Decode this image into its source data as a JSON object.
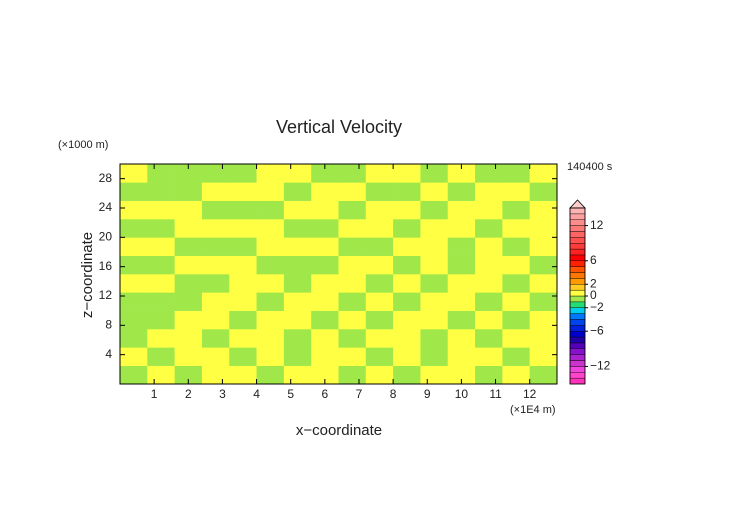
{
  "chart_data": {
    "type": "contour",
    "title": "Vertical Velocity",
    "xlabel": "x−coordinate",
    "ylabel": "z−coordinate",
    "x_unit": "(×1E4 m)",
    "y_unit": "(×1000 m)",
    "time_label": "140400 s",
    "xlim": [
      0,
      12.8
    ],
    "ylim": [
      0,
      30
    ],
    "xticks": [
      1,
      2,
      3,
      4,
      5,
      6,
      7,
      8,
      9,
      10,
      11,
      12
    ],
    "yticks": [
      4,
      8,
      12,
      16,
      20,
      24,
      28
    ],
    "x_edges": [
      0,
      0.8,
      1.6,
      2.4,
      3.2,
      4,
      4.8,
      5.6,
      6.4,
      7.2,
      8,
      8.8,
      9.6,
      10.4,
      11.2,
      12,
      12.8
    ],
    "y_edges": [
      0,
      2.5,
      5,
      7.5,
      10,
      12.5,
      15,
      17.5,
      20,
      22.5,
      25,
      27.5,
      30
    ],
    "z": [
      [
        -0.5,
        0.5,
        -0.5,
        0.5,
        0.5,
        -0.5,
        0.5,
        0.5,
        -0.5,
        0.5,
        -0.5,
        0.5,
        0.5,
        -0.5,
        0.5,
        -0.5
      ],
      [
        0.5,
        -0.5,
        0.5,
        0.5,
        -0.5,
        0.5,
        -0.5,
        0.5,
        0.5,
        -0.5,
        0.5,
        -0.5,
        0.5,
        0.5,
        -0.5,
        0.5
      ],
      [
        -0.5,
        0.5,
        0.5,
        -0.5,
        0.5,
        0.5,
        -0.5,
        0.5,
        -0.5,
        0.5,
        0.5,
        -0.5,
        0.5,
        -0.5,
        0.5,
        0.5
      ],
      [
        -0.5,
        -0.5,
        0.5,
        0.5,
        -0.5,
        0.5,
        0.5,
        -0.5,
        0.5,
        -0.5,
        0.5,
        0.5,
        -0.5,
        0.5,
        -0.5,
        0.5
      ],
      [
        -0.5,
        -0.5,
        -0.5,
        0.5,
        0.5,
        -0.5,
        0.5,
        0.5,
        -0.5,
        0.5,
        -0.5,
        0.5,
        0.5,
        -0.5,
        0.5,
        -0.5
      ],
      [
        0.5,
        0.5,
        -0.5,
        -0.5,
        0.5,
        0.5,
        -0.5,
        0.5,
        0.5,
        -0.5,
        0.5,
        -0.5,
        0.5,
        0.5,
        -0.5,
        0.5
      ],
      [
        -0.5,
        -0.5,
        0.5,
        0.5,
        0.5,
        -0.5,
        -0.5,
        -0.5,
        0.5,
        0.5,
        -0.5,
        0.5,
        -0.5,
        0.5,
        0.5,
        -0.5
      ],
      [
        0.5,
        0.5,
        -0.5,
        -0.5,
        -0.5,
        0.5,
        0.5,
        0.5,
        -0.5,
        -0.5,
        0.5,
        0.5,
        -0.5,
        0.5,
        -0.5,
        0.5
      ],
      [
        -0.5,
        -0.5,
        0.5,
        0.5,
        0.5,
        0.5,
        -0.5,
        -0.5,
        0.5,
        0.5,
        -0.5,
        0.5,
        0.5,
        -0.5,
        0.5,
        0.5
      ],
      [
        0.5,
        0.5,
        0.5,
        -0.5,
        -0.5,
        -0.5,
        0.5,
        0.5,
        -0.5,
        0.5,
        0.5,
        -0.5,
        0.5,
        0.5,
        -0.5,
        0.5
      ],
      [
        -0.5,
        -0.5,
        -0.5,
        0.5,
        0.5,
        0.5,
        -0.5,
        0.5,
        0.5,
        -0.5,
        -0.5,
        0.5,
        -0.5,
        0.5,
        0.5,
        -0.5
      ],
      [
        0.5,
        -0.5,
        -0.5,
        -0.5,
        -0.5,
        0.5,
        0.5,
        -0.5,
        -0.5,
        0.5,
        0.5,
        -0.5,
        0.5,
        -0.5,
        -0.5,
        0.5
      ]
    ],
    "levels": [
      -15,
      -14,
      -13,
      -12,
      -11,
      -10,
      -9,
      -8,
      -7,
      -6,
      -5,
      -4,
      -3,
      -2,
      -1,
      0,
      1,
      2,
      3,
      4,
      5,
      6,
      7,
      8,
      9,
      10,
      11,
      12,
      13,
      14,
      15
    ],
    "colors": [
      "#ff33bb",
      "#ff44cc",
      "#ee44dd",
      "#cc33cc",
      "#aa22cc",
      "#8811cc",
      "#5500bb",
      "#2200aa",
      "#0000cc",
      "#0022dd",
      "#0044ee",
      "#0077ff",
      "#00ccee",
      "#22dd77",
      "#a0e84a",
      "#ffff44",
      "#ffcc22",
      "#ff9900",
      "#ff7700",
      "#ff5500",
      "#ff2200",
      "#ff0000",
      "#ff2222",
      "#ff3c3c",
      "#ff5050",
      "#ff6464",
      "#ff7878",
      "#ff8c8c",
      "#ffa0a0",
      "#ffb4b4"
    ],
    "cticks": [
      {
        "value": -12,
        "label": "−12"
      },
      {
        "value": -6,
        "label": "−6"
      },
      {
        "value": -2,
        "label": "−2"
      },
      0,
      2,
      6,
      12
    ]
  }
}
